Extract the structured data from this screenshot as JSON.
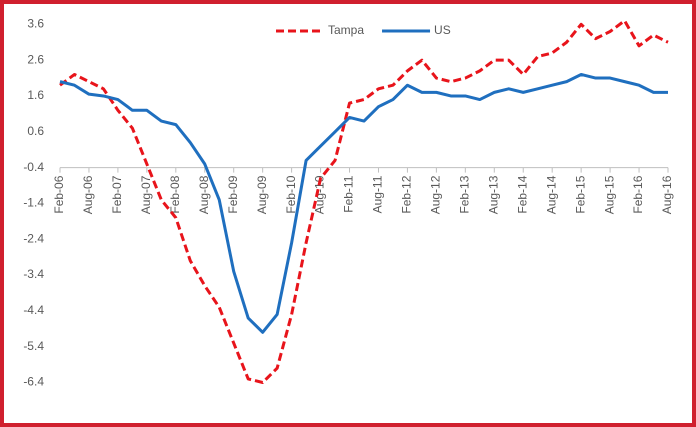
{
  "chart_data": {
    "type": "line",
    "categories": [
      "Feb-06",
      null,
      "Aug-06",
      null,
      "Feb-07",
      null,
      "Aug-07",
      null,
      "Feb-08",
      null,
      "Aug-08",
      null,
      "Feb-09",
      null,
      "Aug-09",
      null,
      "Feb-10",
      null,
      "Aug-10",
      null,
      "Feb-11",
      null,
      "Aug-11",
      null,
      "Feb-12",
      null,
      "Aug-12",
      null,
      "Feb-13",
      null,
      "Aug-13",
      null,
      "Feb-14",
      null,
      "Aug-14",
      null,
      "Feb-15",
      null,
      "Aug-15",
      null,
      "Feb-16",
      null,
      "Aug-16"
    ],
    "series": [
      {
        "name": "Tampa",
        "color": "#e8141b",
        "dashed": true,
        "values": [
          1.9,
          2.2,
          2.0,
          1.8,
          1.2,
          0.7,
          -0.3,
          -1.3,
          -1.8,
          -3.0,
          -3.7,
          -4.3,
          -5.3,
          -6.3,
          -6.4,
          -6.0,
          -4.5,
          -2.5,
          -0.7,
          -0.2,
          1.4,
          1.5,
          1.8,
          1.9,
          2.3,
          2.6,
          2.1,
          2.0,
          2.1,
          2.3,
          2.6,
          2.6,
          2.2,
          2.7,
          2.8,
          3.1,
          3.6,
          3.2,
          3.4,
          3.7,
          3.0,
          3.3,
          3.1
        ]
      },
      {
        "name": "US",
        "color": "#1f6fbf",
        "dashed": false,
        "values": [
          2.0,
          1.9,
          1.65,
          1.6,
          1.5,
          1.2,
          1.2,
          0.9,
          0.8,
          0.3,
          -0.3,
          -1.3,
          -3.3,
          -4.6,
          -5.0,
          -4.5,
          -2.5,
          -0.2,
          0.2,
          0.6,
          1.0,
          0.9,
          1.3,
          1.5,
          1.9,
          1.7,
          1.7,
          1.6,
          1.6,
          1.5,
          1.7,
          1.8,
          1.7,
          1.8,
          1.9,
          2.0,
          2.2,
          2.1,
          2.1,
          2.0,
          1.9,
          1.7,
          1.7
        ]
      }
    ],
    "ylim": [
      -7.0,
      4.0
    ],
    "yticks": [
      3.6,
      2.6,
      1.6,
      0.6,
      -0.4,
      -1.4,
      -2.4,
      -3.4,
      -4.4,
      -5.4,
      -6.4
    ],
    "x_axis_at": -0.4,
    "legend": "top",
    "grid": false
  }
}
